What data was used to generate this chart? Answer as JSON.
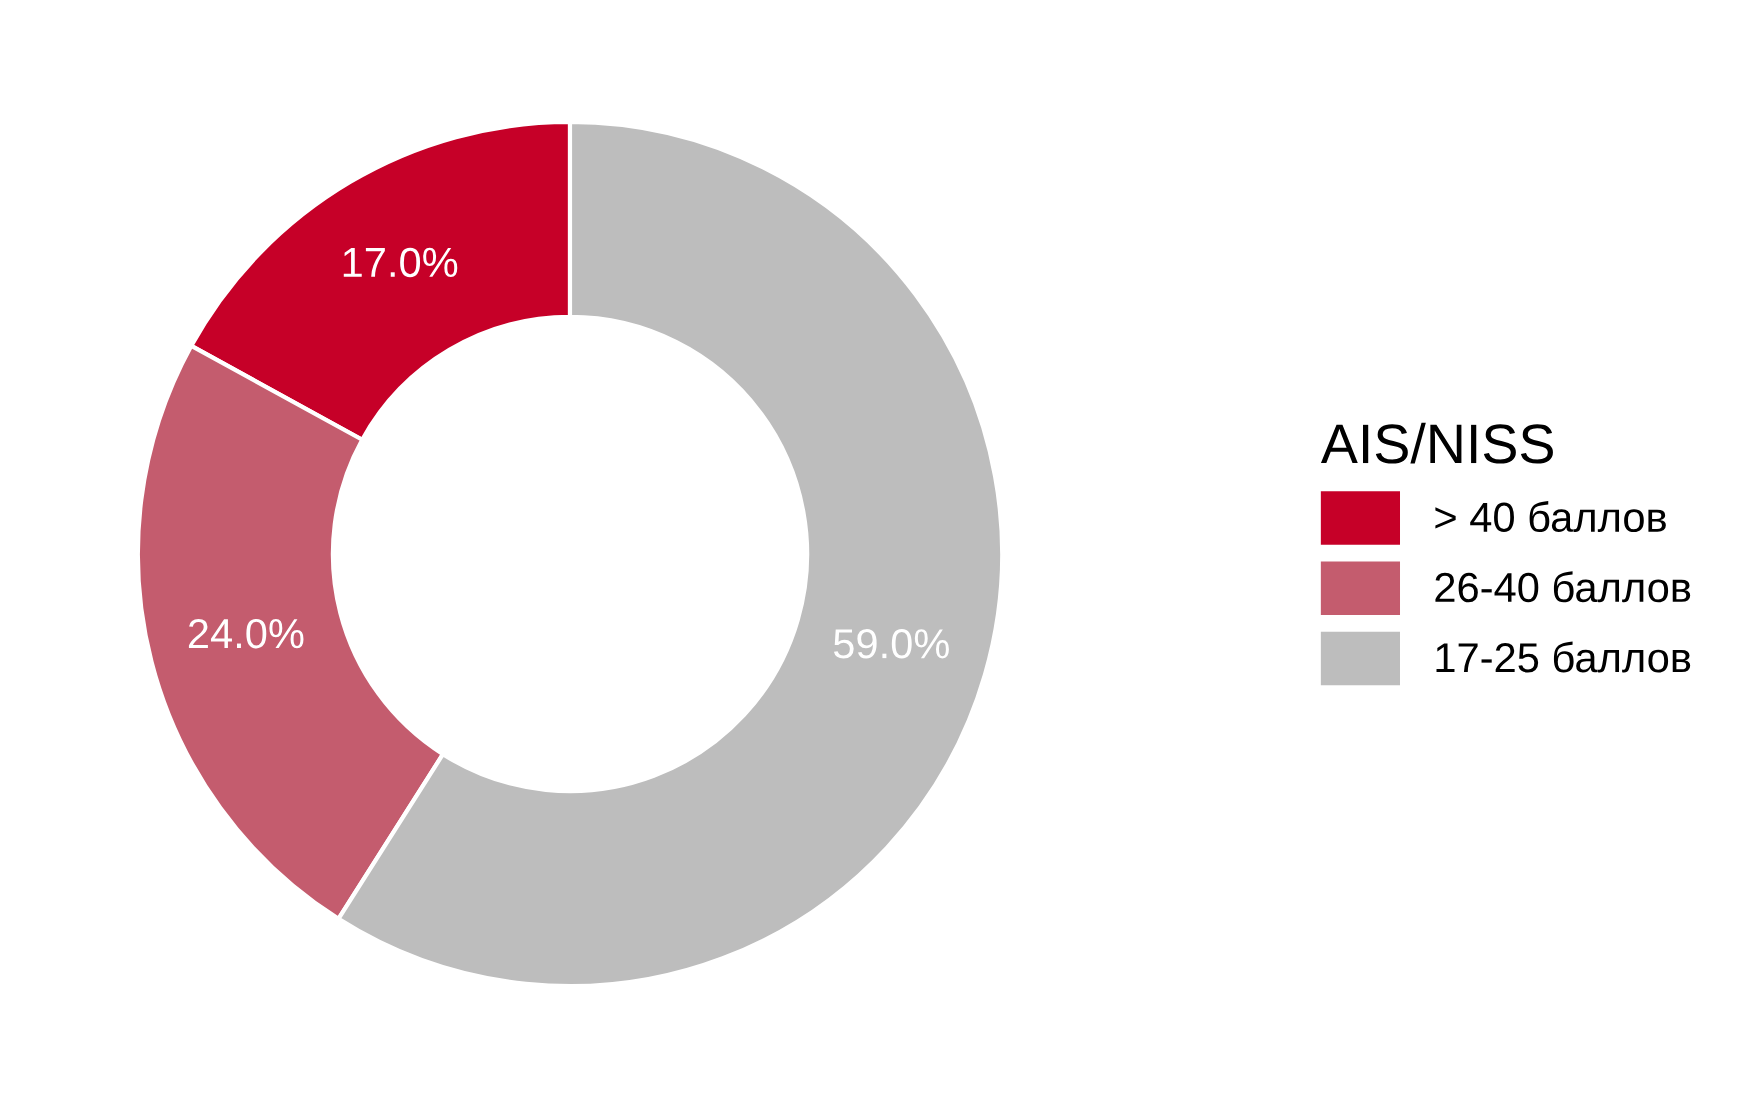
{
  "chart_data": {
    "type": "donut",
    "legend_title": "AIS/NISS",
    "categories": [
      "> 40 баллов",
      "26-40 баллов",
      "17-25 баллов"
    ],
    "values": [
      17,
      24,
      59
    ],
    "colors": [
      "#c60028",
      "#c45c6e",
      "#bdbdbd"
    ],
    "value_labels": [
      "17.0%",
      "24.0%",
      "59.0%"
    ],
    "legend": "right"
  }
}
